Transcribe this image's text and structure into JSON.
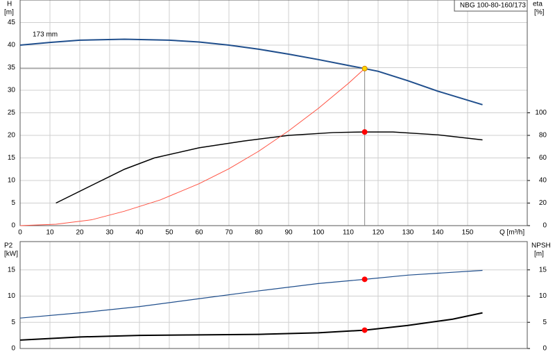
{
  "chart_data": [
    {
      "type": "line",
      "title": "NBG 100-80-160/173",
      "annotations": [
        "173 mm"
      ],
      "ylabel": "H",
      "yunit": "[m]",
      "y2label": "eta",
      "y2unit": "[%]",
      "xlabel": "Q [m³/h]",
      "xlim": [
        0,
        170
      ],
      "xticks": [
        0,
        10,
        20,
        30,
        40,
        50,
        60,
        70,
        80,
        90,
        100,
        110,
        120,
        130,
        140,
        150
      ],
      "ylim": [
        0,
        50
      ],
      "yticks": [
        0,
        5,
        10,
        15,
        20,
        25,
        30,
        35,
        40,
        45
      ],
      "y2lim": [
        0,
        200
      ],
      "y2ticks": [
        0,
        20,
        40,
        60,
        80,
        100
      ],
      "grid": true,
      "show_xtick_labels": true,
      "series": [
        {
          "color": "#1f4e8c",
          "width": 2,
          "x": [
            0,
            10,
            20,
            35,
            50,
            60,
            70,
            80,
            90,
            100,
            110,
            115.5,
            120,
            130,
            140,
            155
          ],
          "values": [
            40,
            40.6,
            41.1,
            41.3,
            41.1,
            40.7,
            40.0,
            39.1,
            38.0,
            36.8,
            35.5,
            34.8,
            34.2,
            32.1,
            29.8,
            26.8
          ]
        },
        {
          "color": "#000000",
          "width": 1.5,
          "axis": "y2",
          "x": [
            12,
            25,
            35,
            45,
            60,
            75,
            90,
            105,
            115,
            125,
            140,
            155
          ],
          "values": [
            20,
            37,
            50,
            60,
            69,
            75,
            80,
            82.5,
            83,
            83,
            80.5,
            76
          ]
        },
        {
          "color": "#ff5040",
          "width": 1,
          "x": [
            0,
            12,
            24,
            35,
            47,
            60,
            70,
            80,
            90,
            100,
            110,
            115.5
          ],
          "values": [
            0,
            0.3,
            1.3,
            3.2,
            5.7,
            9.3,
            12.6,
            16.5,
            21,
            26,
            31.5,
            34.8
          ]
        },
        {
          "color": "#ffd700",
          "marker": true,
          "guides": true,
          "x": [
            115.5
          ],
          "values": [
            34.8
          ]
        },
        {
          "color": "#ff0000",
          "marker": true,
          "axis": "y2",
          "x": [
            115.5
          ],
          "values": [
            83
          ]
        }
      ]
    },
    {
      "type": "line",
      "ylabel": "P2",
      "yunit": "[kW]",
      "y2label": "NPSH",
      "y2unit": "[m]",
      "xlim": [
        0,
        170
      ],
      "xticks": [
        0,
        10,
        20,
        30,
        40,
        50,
        60,
        70,
        80,
        90,
        100,
        110,
        120,
        130,
        140,
        150
      ],
      "ylim": [
        0,
        20
      ],
      "yticks": [
        0,
        5,
        10,
        15
      ],
      "y2lim": [
        0,
        20
      ],
      "y2ticks": [
        0,
        5,
        10,
        15
      ],
      "grid": true,
      "show_xtick_labels": false,
      "series": [
        {
          "color": "#1f4e8c",
          "width": 1.2,
          "x": [
            0,
            20,
            40,
            60,
            80,
            100,
            115.5,
            130,
            155
          ],
          "values": [
            5.8,
            6.8,
            8.0,
            9.5,
            11.0,
            12.4,
            13.2,
            14.0,
            14.9
          ]
        },
        {
          "color": "#000000",
          "width": 2,
          "axis": "y2",
          "x": [
            0,
            20,
            40,
            60,
            80,
            100,
            115.5,
            130,
            145,
            155
          ],
          "values": [
            1.6,
            2.2,
            2.5,
            2.6,
            2.7,
            3.0,
            3.5,
            4.4,
            5.6,
            6.8
          ]
        },
        {
          "color": "#ff0000",
          "marker": true,
          "x": [
            115.5
          ],
          "values": [
            13.2
          ]
        },
        {
          "color": "#ff0000",
          "marker": true,
          "axis": "y2",
          "x": [
            115.5
          ],
          "values": [
            3.5
          ]
        }
      ]
    }
  ]
}
